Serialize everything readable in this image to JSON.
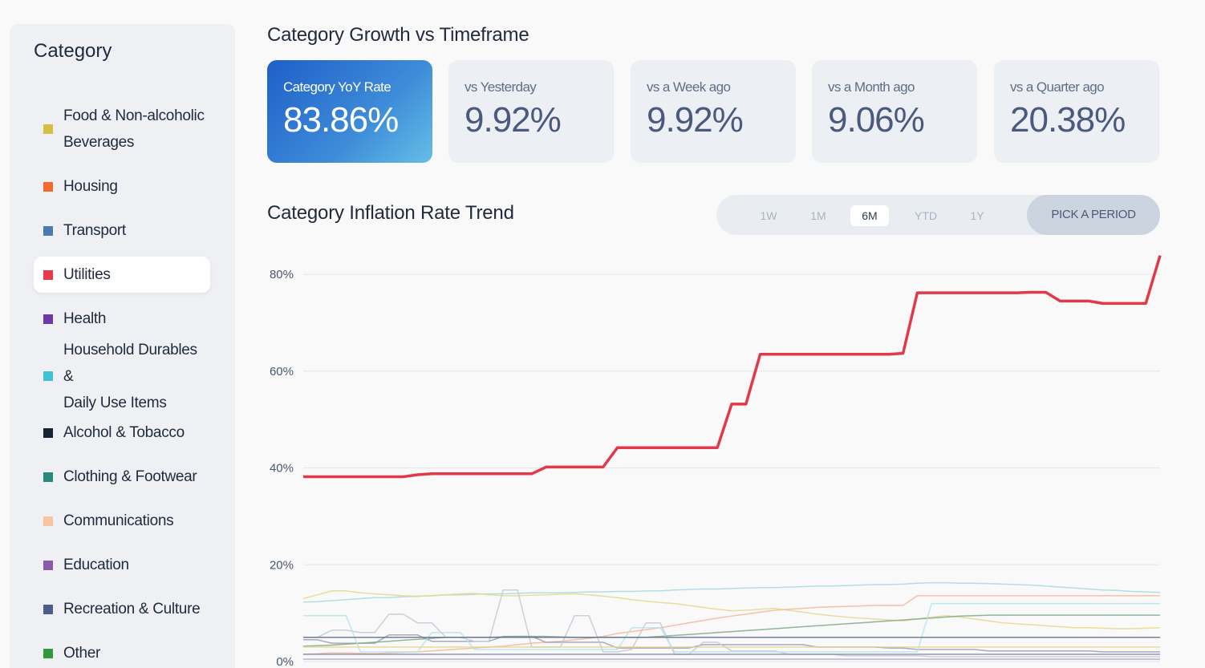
{
  "sidebar": {
    "title": "Category",
    "items": [
      {
        "label": "Food & Non-alcoholic Beverages",
        "lines": [
          "Food & Non-alcoholic",
          "Beverages"
        ],
        "color": "#d4c144"
      },
      {
        "label": "Housing",
        "lines": [
          "Housing"
        ],
        "color": "#f26b2a"
      },
      {
        "label": "Transport",
        "lines": [
          "Transport"
        ],
        "color": "#4a7ab5"
      },
      {
        "label": "Utilities",
        "lines": [
          "Utilities"
        ],
        "color": "#e83a4a",
        "selected": true
      },
      {
        "label": "Health",
        "lines": [
          "Health"
        ],
        "color": "#6d38a8"
      },
      {
        "label": "Household Durables & Daily Use Items",
        "lines": [
          "Household Durables &",
          "Daily Use Items"
        ],
        "color": "#3fc2d1"
      },
      {
        "label": "Alcohol & Tobacco",
        "lines": [
          "Alcohol & Tobacco"
        ],
        "color": "#152535"
      },
      {
        "label": "Clothing & Footwear",
        "lines": [
          "Clothing & Footwear"
        ],
        "color": "#2a8a7a"
      },
      {
        "label": "Communications",
        "lines": [
          "Communications"
        ],
        "color": "#f7c4a0"
      },
      {
        "label": "Education",
        "lines": [
          "Education"
        ],
        "color": "#8a5aaa"
      },
      {
        "label": "Recreation & Culture",
        "lines": [
          "Recreation & Culture"
        ],
        "color": "#4a5e8a"
      },
      {
        "label": "Other",
        "lines": [
          "Other"
        ],
        "color": "#2e9a3a"
      }
    ]
  },
  "growth": {
    "title": "Category Growth vs Timeframe",
    "cards": [
      {
        "label": "Category YoY Rate",
        "value": "83.86%",
        "primary": true
      },
      {
        "label": "vs Yesterday",
        "value": "9.92%"
      },
      {
        "label": "vs a Week ago",
        "value": "9.92%"
      },
      {
        "label": "vs a Month ago",
        "value": "9.06%"
      },
      {
        "label": "vs a Quarter ago",
        "value": "20.38%"
      }
    ]
  },
  "trend": {
    "title": "Category Inflation Rate Trend",
    "periods": [
      "1W",
      "1M",
      "6M",
      "YTD",
      "1Y"
    ],
    "active_period": "6M",
    "pick_label": "PICK A PERIOD"
  },
  "chart_data": {
    "type": "line",
    "ylim": [
      0,
      85
    ],
    "y_ticks": [
      0,
      20,
      40,
      60,
      80
    ],
    "y_tick_labels": [
      "0%",
      "20%",
      "40%",
      "60%",
      "80%"
    ],
    "x": [
      0,
      1,
      2,
      3,
      4,
      5,
      6,
      7,
      8,
      9,
      10,
      11,
      12,
      13,
      14,
      15,
      16,
      17,
      18,
      19,
      20,
      21,
      22,
      23,
      24,
      25,
      26,
      27,
      28,
      29,
      30,
      31,
      32,
      33,
      34,
      35,
      36,
      37,
      38,
      39,
      40,
      41,
      42,
      43,
      44,
      45,
      46,
      47,
      48,
      49,
      50,
      51,
      52,
      53,
      54,
      55,
      56,
      57,
      58,
      59,
      60
    ],
    "series": [
      {
        "color": "#e2384a",
        "highlight": true,
        "values": [
          38.2,
          38.2,
          38.2,
          38.2,
          38.2,
          38.2,
          38.2,
          38.2,
          38.6,
          38.8,
          38.8,
          38.8,
          38.8,
          38.8,
          38.8,
          38.8,
          38.8,
          40.2,
          40.2,
          40.2,
          40.2,
          40.2,
          44.2,
          44.2,
          44.2,
          44.2,
          44.2,
          44.2,
          44.2,
          44.2,
          53.2,
          53.2,
          63.5,
          63.5,
          63.5,
          63.5,
          63.5,
          63.5,
          63.5,
          63.5,
          63.5,
          63.5,
          63.7,
          76.2,
          76.2,
          76.2,
          76.2,
          76.2,
          76.2,
          76.2,
          76.2,
          76.3,
          76.3,
          74.5,
          74.5,
          74.5,
          74.0,
          74.0,
          74.0,
          74.0,
          83.9
        ]
      },
      {
        "color": "#a8d8df",
        "values": [
          12.3,
          12.4,
          12.6,
          12.8,
          13.0,
          13.2,
          13.2,
          13.4,
          13.5,
          13.6,
          13.8,
          13.8,
          13.9,
          14.0,
          14.0,
          14.1,
          14.2,
          14.2,
          14.2,
          14.3,
          14.4,
          14.4,
          14.5,
          14.5,
          14.6,
          14.6,
          14.8,
          14.9,
          15.0,
          15.0,
          15.1,
          15.2,
          15.3,
          15.3,
          15.4,
          15.5,
          15.6,
          15.6,
          15.7,
          15.8,
          15.9,
          15.9,
          16.0,
          16.2,
          16.3,
          16.3,
          16.2,
          16.2,
          16.1,
          16.0,
          15.9,
          15.8,
          15.6,
          15.4,
          15.2,
          15.0,
          14.8,
          14.7,
          14.5,
          14.4,
          14.3
        ]
      },
      {
        "color": "#e5d88a",
        "values": [
          13.0,
          13.8,
          14.6,
          14.6,
          14.2,
          14.0,
          13.8,
          13.6,
          13.5,
          13.6,
          13.8,
          14.0,
          14.1,
          13.8,
          13.6,
          13.6,
          13.7,
          13.8,
          13.9,
          14.0,
          13.8,
          13.5,
          13.2,
          12.8,
          12.5,
          12.2,
          12.0,
          11.6,
          11.2,
          10.8,
          10.5,
          10.6,
          10.8,
          11.0,
          10.6,
          10.2,
          9.8,
          9.5,
          9.2,
          9.0,
          8.8,
          8.6,
          8.4,
          8.8,
          9.2,
          9.5,
          9.2,
          8.8,
          8.4,
          8.0,
          7.8,
          7.6,
          7.4,
          7.2,
          7.0,
          7.0,
          6.9,
          6.8,
          6.8,
          6.9,
          7.0
        ]
      },
      {
        "color": "#f7b69a",
        "values": [
          1.5,
          1.6,
          1.8,
          1.8,
          1.7,
          1.6,
          1.8,
          1.9,
          2.0,
          2.2,
          2.4,
          2.6,
          2.8,
          3.0,
          3.2,
          3.5,
          3.8,
          4.0,
          4.2,
          4.5,
          4.8,
          5.2,
          5.8,
          6.2,
          6.6,
          7.0,
          7.5,
          8.0,
          8.5,
          9.0,
          9.4,
          9.8,
          10.2,
          10.6,
          10.8,
          11.0,
          11.2,
          11.3,
          11.4,
          11.5,
          11.6,
          11.6,
          11.6,
          13.6,
          13.6,
          13.6,
          13.6,
          13.6,
          13.6,
          13.6,
          13.6,
          13.6,
          13.6,
          13.6,
          13.6,
          13.6,
          13.6,
          13.6,
          13.6,
          13.6,
          13.6
        ]
      },
      {
        "color": "#9e9ab4",
        "values": [
          4.5,
          4.5,
          3.8,
          3.8,
          3.8,
          3.8,
          5.5,
          5.5,
          5.5,
          4.2,
          4.2,
          4.2,
          4.2,
          4.2,
          5.2,
          5.2,
          5.2,
          4.0,
          4.0,
          4.0,
          4.0,
          4.0,
          2.8,
          2.8,
          2.8,
          2.8,
          2.8,
          2.8,
          3.5,
          3.5,
          3.5,
          3.5,
          3.5,
          3.5,
          3.5,
          3.5,
          3.0,
          3.0,
          3.0,
          3.0,
          3.0,
          2.8,
          2.8,
          2.5,
          2.5,
          2.5,
          2.5,
          2.5,
          2.2,
          2.2,
          2.2,
          2.2,
          2.2,
          2.2,
          2.2,
          2.2,
          2.0,
          2.0,
          2.0,
          2.0,
          2.0
        ]
      },
      {
        "color": "#c8c6d8",
        "values": [
          5.0,
          5.0,
          6.5,
          6.5,
          6.0,
          6.0,
          9.8,
          9.8,
          8.0,
          8.0,
          5.0,
          5.0,
          4.2,
          4.2,
          14.8,
          14.8,
          3.0,
          3.0,
          3.0,
          9.5,
          9.5,
          2.0,
          2.0,
          2.5,
          8.0,
          8.0,
          1.5,
          1.5,
          4.0,
          4.0,
          2.2,
          2.2,
          2.2,
          2.2,
          1.5,
          1.5,
          1.5,
          1.5,
          1.2,
          1.2,
          1.2,
          1.2,
          1.2,
          1.2,
          1.0,
          1.0,
          1.0,
          1.0,
          1.0,
          1.0,
          1.0,
          1.0,
          1.0,
          1.0,
          1.0,
          1.0,
          1.0,
          1.0,
          1.0,
          1.0,
          1.0
        ]
      },
      {
        "color": "#7fa88a",
        "values": [
          3.2,
          3.3,
          3.4,
          3.6,
          3.8,
          4.0,
          4.2,
          4.4,
          4.6,
          4.8,
          5.0,
          5.0,
          5.0,
          5.0,
          5.1,
          5.2,
          5.2,
          5.2,
          5.1,
          5.0,
          5.0,
          5.0,
          5.0,
          5.0,
          5.0,
          5.2,
          5.4,
          5.6,
          5.8,
          6.0,
          6.2,
          6.4,
          6.6,
          6.8,
          7.0,
          7.2,
          7.4,
          7.6,
          7.8,
          8.0,
          8.2,
          8.4,
          8.6,
          8.8,
          9.0,
          9.2,
          9.4,
          9.5,
          9.6,
          9.6,
          9.6,
          9.6,
          9.6,
          9.6,
          9.6,
          9.6,
          9.6,
          9.6,
          9.6,
          9.6,
          9.6
        ]
      },
      {
        "color": "#b3e4ea",
        "values": [
          9.5,
          9.5,
          9.5,
          9.5,
          2.0,
          2.0,
          2.0,
          2.0,
          2.0,
          6.0,
          6.0,
          6.0,
          2.5,
          2.5,
          2.5,
          2.5,
          2.5,
          2.5,
          2.5,
          2.5,
          2.5,
          2.5,
          2.5,
          7.0,
          7.0,
          7.0,
          2.0,
          2.0,
          2.0,
          2.0,
          2.0,
          2.0,
          2.0,
          2.0,
          2.0,
          2.0,
          2.0,
          2.0,
          2.0,
          2.0,
          2.0,
          2.0,
          2.0,
          2.0,
          12.0,
          12.0,
          12.0,
          12.0,
          12.0,
          12.0,
          12.0,
          12.0,
          12.0,
          12.0,
          12.0,
          12.0,
          12.0,
          12.0,
          12.0,
          12.0,
          12.0
        ]
      },
      {
        "color": "#5a6b8c",
        "values": [
          5.0,
          5.0,
          5.0,
          5.0,
          5.0,
          5.0,
          5.0,
          5.0,
          5.0,
          5.0,
          5.0,
          5.0,
          5.0,
          5.0,
          5.0,
          5.0,
          5.0,
          5.0,
          5.0,
          5.0,
          5.0,
          5.0,
          5.0,
          5.0,
          5.0,
          5.0,
          5.0,
          5.0,
          5.0,
          5.0,
          5.0,
          5.0,
          5.0,
          5.0,
          5.0,
          5.0,
          5.0,
          5.0,
          5.0,
          5.0,
          5.0,
          5.0,
          5.0,
          5.0,
          5.0,
          5.0,
          5.0,
          5.0,
          5.0,
          5.0,
          5.0,
          5.0,
          5.0,
          5.0,
          5.0,
          5.0,
          5.0,
          5.0,
          5.0,
          5.0,
          5.0
        ]
      },
      {
        "color": "#7a8aa4",
        "values": [
          1.5,
          1.5,
          1.5,
          1.5,
          1.5,
          1.5,
          1.5,
          1.5,
          1.5,
          1.5,
          1.5,
          1.5,
          1.5,
          1.5,
          1.5,
          1.5,
          1.5,
          1.5,
          1.5,
          1.5,
          1.5,
          1.5,
          1.5,
          1.5,
          1.5,
          1.5,
          1.5,
          1.5,
          1.5,
          1.5,
          1.5,
          1.5,
          1.5,
          1.5,
          1.5,
          1.5,
          1.5,
          1.5,
          1.5,
          1.5,
          1.5,
          1.5,
          1.5,
          1.5,
          1.5,
          1.5,
          1.5,
          1.5,
          1.5,
          1.5,
          1.5,
          1.5,
          1.5,
          1.5,
          1.5,
          1.5,
          1.5,
          1.5,
          1.5,
          1.5,
          1.5
        ]
      },
      {
        "color": "#b7a2cf",
        "values": [
          0.5,
          0.5,
          0.5,
          0.5,
          0.5,
          0.5,
          0.5,
          0.5,
          0.5,
          0.5,
          0.5,
          0.5,
          0.5,
          0.5,
          0.5,
          0.5,
          0.5,
          0.5,
          0.5,
          0.5,
          0.5,
          0.5,
          0.5,
          0.5,
          0.5,
          0.5,
          0.5,
          0.5,
          0.5,
          0.5,
          0.5,
          0.5,
          0.5,
          0.5,
          0.5,
          0.5,
          0.5,
          0.5,
          0.5,
          0.5,
          0.5,
          0.5,
          0.5,
          0.5,
          0.5,
          0.5,
          0.5,
          0.5,
          0.5,
          0.5,
          0.5,
          0.5,
          0.5,
          0.5,
          0.5,
          0.5,
          0.5,
          0.5,
          0.5,
          0.5,
          0.5
        ]
      },
      {
        "color": "#e6d18a",
        "values": [
          3.0,
          3.0,
          3.0,
          3.0,
          3.0,
          3.0,
          3.0,
          3.0,
          3.0,
          3.0,
          3.0,
          3.0,
          3.0,
          3.0,
          3.0,
          3.0,
          3.0,
          3.0,
          3.0,
          3.0,
          3.0,
          3.0,
          3.0,
          3.0,
          3.0,
          3.0,
          3.0,
          3.0,
          3.0,
          3.0,
          3.0,
          3.0,
          3.0,
          3.0,
          3.0,
          3.0,
          3.0,
          3.0,
          3.0,
          3.0,
          3.0,
          3.0,
          3.0,
          3.0,
          3.0,
          3.0,
          3.0,
          3.0,
          3.0,
          3.0,
          3.0,
          3.0,
          3.0,
          3.0,
          3.0,
          3.0,
          3.0,
          3.0,
          3.0,
          3.0,
          3.0
        ]
      }
    ]
  }
}
